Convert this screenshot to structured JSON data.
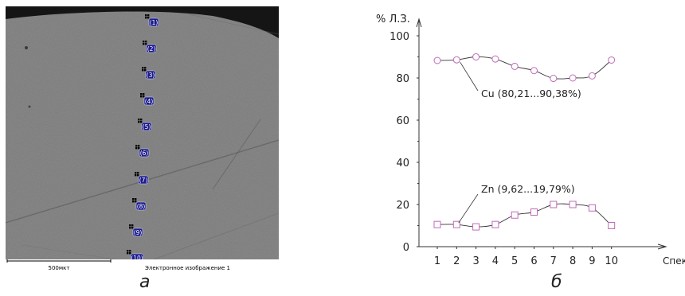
{
  "micrograph": {
    "points": [
      "(1)",
      "(2)",
      "(3)",
      "(4)",
      "(5)",
      "(6)",
      "(7)",
      "(8)",
      "(9)",
      "(10)"
    ],
    "scale_label": "500мкт",
    "image_caption": "Электронное изображение 1",
    "colors": {
      "background": "#7d7d7d",
      "dark": "#1a1a1a",
      "marker": "#1c1c8a"
    }
  },
  "panel_labels": {
    "a": "a",
    "b": "б"
  },
  "chart_data": {
    "type": "line",
    "ylabel": "% Л.З.",
    "xlabel": "Спектр",
    "categories": [
      "1",
      "2",
      "3",
      "4",
      "5",
      "6",
      "7",
      "8",
      "9",
      "10"
    ],
    "x": [
      1,
      2,
      3,
      4,
      5,
      6,
      7,
      8,
      9,
      10
    ],
    "xlim": [
      0.6,
      10.6
    ],
    "ylim": [
      0,
      100
    ],
    "yticks": [
      0,
      20,
      40,
      60,
      80,
      100
    ],
    "series": [
      {
        "name": "Cu",
        "annotation": "Cu (80,21...90,38%)",
        "marker": "circle",
        "values": [
          88.3,
          88.6,
          90.0,
          89.0,
          85.5,
          83.5,
          79.8,
          80.0,
          81.0,
          88.5
        ]
      },
      {
        "name": "Zn",
        "annotation": "Zn (9,62...19,79%)",
        "marker": "square",
        "values": [
          10.5,
          10.5,
          9.4,
          10.5,
          15.0,
          16.4,
          20.0,
          20.0,
          18.4,
          10.0
        ]
      }
    ],
    "colors": {
      "marker": "#c06bb8",
      "line": "#333333",
      "axis": "#333333"
    }
  }
}
